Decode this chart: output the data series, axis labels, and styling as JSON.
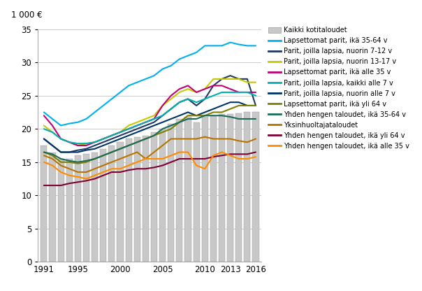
{
  "years": [
    1991,
    1992,
    1993,
    1994,
    1995,
    1996,
    1997,
    1998,
    1999,
    2000,
    2001,
    2002,
    2003,
    2004,
    2005,
    2006,
    2007,
    2008,
    2009,
    2010,
    2011,
    2012,
    2013,
    2014,
    2015,
    2016
  ],
  "bar_values": [
    17.5,
    16.5,
    15.5,
    15.5,
    16.0,
    16.2,
    16.5,
    17.0,
    17.5,
    18.0,
    18.5,
    18.8,
    19.0,
    19.5,
    20.0,
    20.8,
    21.5,
    21.8,
    21.0,
    21.8,
    22.0,
    22.2,
    22.2,
    22.3,
    22.5,
    22.5
  ],
  "series": [
    {
      "label": "Lapsettomat parit, ikä 35-64 v",
      "color": "#00b0f0",
      "data": [
        22.5,
        21.5,
        20.5,
        20.8,
        21.0,
        21.5,
        22.5,
        23.5,
        24.5,
        25.5,
        26.5,
        27.0,
        27.5,
        28.0,
        29.0,
        29.5,
        30.5,
        31.0,
        31.5,
        32.5,
        32.5,
        32.5,
        33.0,
        32.7,
        32.5,
        32.5
      ]
    },
    {
      "label": "Parit, joilla lapsia, nuorin 7-12 v",
      "color": "#1f3864",
      "data": [
        18.5,
        17.5,
        16.5,
        16.5,
        16.8,
        17.0,
        17.5,
        18.0,
        18.5,
        19.0,
        19.5,
        20.0,
        20.5,
        21.0,
        22.0,
        23.0,
        24.0,
        24.5,
        23.5,
        24.5,
        26.5,
        27.5,
        28.0,
        27.5,
        27.5,
        23.5
      ]
    },
    {
      "label": "Parit, joilla lapsia, nuorin 13-17 v",
      "color": "#c8c800",
      "data": [
        20.5,
        19.5,
        18.5,
        18.0,
        17.5,
        17.8,
        18.0,
        18.5,
        19.0,
        19.5,
        20.5,
        21.0,
        21.5,
        22.0,
        23.5,
        24.5,
        25.5,
        26.0,
        25.5,
        26.0,
        27.5,
        27.5,
        27.5,
        27.5,
        27.0,
        27.0
      ]
    },
    {
      "label": "Lapsettomat parit, ikä alle 35 v",
      "color": "#c00078",
      "data": [
        22.0,
        20.5,
        18.5,
        18.0,
        17.5,
        17.5,
        18.0,
        18.5,
        19.0,
        19.5,
        20.0,
        20.5,
        21.0,
        21.5,
        23.5,
        25.0,
        26.0,
        26.5,
        25.5,
        26.0,
        26.5,
        26.5,
        26.0,
        25.5,
        25.5,
        25.5
      ]
    },
    {
      "label": "Parit, joilla lapsia, kaikki alle 7 v",
      "color": "#00b0b0",
      "data": [
        20.0,
        19.5,
        18.5,
        18.0,
        17.8,
        17.8,
        18.0,
        18.5,
        19.0,
        19.5,
        20.0,
        20.5,
        21.0,
        21.5,
        22.0,
        23.0,
        24.0,
        24.5,
        24.0,
        24.5,
        25.0,
        25.5,
        25.5,
        25.5,
        25.5,
        25.0
      ]
    },
    {
      "label": "Parit, joilla lapsia, nuorin alle 7 v",
      "color": "#003366",
      "data": [
        18.5,
        17.5,
        16.5,
        16.5,
        16.5,
        16.8,
        17.0,
        17.5,
        18.0,
        18.5,
        19.0,
        19.5,
        20.0,
        20.5,
        21.0,
        21.5,
        22.0,
        22.5,
        22.0,
        22.5,
        23.0,
        23.5,
        24.0,
        24.0,
        23.5,
        23.5
      ]
    },
    {
      "label": "Lapsettomat parit, ikä yli 64 v",
      "color": "#7f7f00",
      "data": [
        16.5,
        16.0,
        15.0,
        15.0,
        14.8,
        15.0,
        15.5,
        16.0,
        16.5,
        17.0,
        17.5,
        18.0,
        18.5,
        19.0,
        19.5,
        20.0,
        21.0,
        22.0,
        22.0,
        22.0,
        22.5,
        22.5,
        23.0,
        23.5,
        23.5,
        23.5
      ]
    },
    {
      "label": "Yhden hengen taloudet, ikä 35-64 v",
      "color": "#1a6b5a",
      "data": [
        16.5,
        16.2,
        15.5,
        15.2,
        15.0,
        15.2,
        15.5,
        16.0,
        16.5,
        17.0,
        17.5,
        18.0,
        18.5,
        19.0,
        20.0,
        20.5,
        21.0,
        21.5,
        21.5,
        22.0,
        22.0,
        22.0,
        21.8,
        21.5,
        21.5,
        21.5
      ]
    },
    {
      "label": "Yksinhuoltajataloudet",
      "color": "#b87300",
      "data": [
        16.0,
        15.5,
        14.5,
        14.0,
        13.5,
        13.5,
        14.0,
        14.5,
        15.0,
        15.5,
        16.0,
        16.5,
        15.5,
        16.5,
        17.5,
        18.5,
        18.5,
        18.5,
        18.5,
        18.8,
        18.5,
        18.5,
        18.5,
        18.2,
        18.0,
        18.5
      ]
    },
    {
      "label": "Yhden hengen taloudet, ikä yli 64 v",
      "color": "#7f0032",
      "data": [
        11.5,
        11.5,
        11.5,
        11.8,
        12.0,
        12.2,
        12.5,
        13.0,
        13.5,
        13.5,
        13.8,
        14.0,
        14.0,
        14.2,
        14.5,
        15.0,
        15.5,
        15.5,
        15.5,
        15.5,
        15.8,
        16.0,
        16.2,
        16.2,
        16.2,
        16.5
      ]
    },
    {
      "label": "Yhden hengen taloudet, ikä alle 35 v",
      "color": "#ff8c00",
      "data": [
        15.0,
        14.5,
        13.5,
        13.0,
        12.8,
        12.5,
        13.0,
        13.5,
        14.0,
        14.0,
        14.5,
        15.0,
        15.5,
        15.5,
        15.5,
        16.0,
        16.5,
        16.5,
        14.5,
        14.0,
        16.0,
        16.5,
        16.0,
        15.5,
        15.5,
        15.8
      ]
    }
  ],
  "bar_color": "#c8c8c8",
  "bar_edge_color": "#999999",
  "ylim": [
    0,
    35
  ],
  "yticks": [
    0,
    5,
    10,
    15,
    20,
    25,
    30,
    35
  ],
  "xticks": [
    1991,
    1995,
    2000,
    2005,
    2010,
    2013,
    2016
  ],
  "ylabel_text": "1 000 €",
  "background_color": "#ffffff",
  "grid_color": "#cccccc",
  "legend_fontsize": 7.0,
  "tick_fontsize": 8.5
}
